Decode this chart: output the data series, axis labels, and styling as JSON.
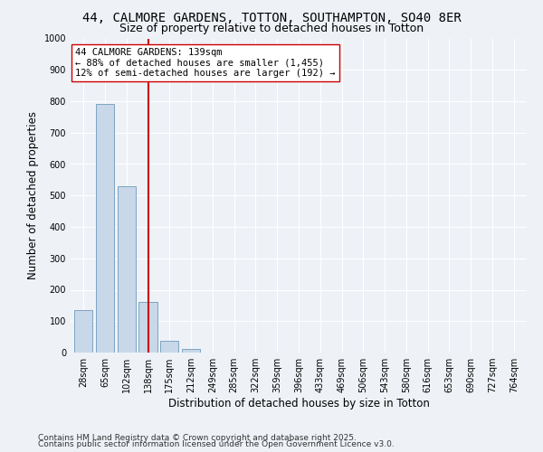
{
  "title_line1": "44, CALMORE GARDENS, TOTTON, SOUTHAMPTON, SO40 8ER",
  "title_line2": "Size of property relative to detached houses in Totton",
  "xlabel": "Distribution of detached houses by size in Totton",
  "ylabel": "Number of detached properties",
  "categories": [
    "28sqm",
    "65sqm",
    "102sqm",
    "138sqm",
    "175sqm",
    "212sqm",
    "249sqm",
    "285sqm",
    "322sqm",
    "359sqm",
    "396sqm",
    "433sqm",
    "469sqm",
    "506sqm",
    "543sqm",
    "580sqm",
    "616sqm",
    "653sqm",
    "690sqm",
    "727sqm",
    "764sqm"
  ],
  "values": [
    135,
    790,
    530,
    160,
    38,
    12,
    0,
    0,
    0,
    0,
    0,
    0,
    0,
    0,
    0,
    0,
    0,
    0,
    0,
    0,
    0
  ],
  "bar_color": "#c8d8e8",
  "bar_edge_color": "#5a8ab0",
  "vline_x_index": 3,
  "vline_color": "#cc0000",
  "annotation_line1": "44 CALMORE GARDENS: 139sqm",
  "annotation_line2": "← 88% of detached houses are smaller (1,455)",
  "annotation_line3": "12% of semi-detached houses are larger (192) →",
  "annotation_box_color": "#ffffff",
  "annotation_box_edge": "#cc0000",
  "ylim": [
    0,
    1000
  ],
  "yticks": [
    0,
    100,
    200,
    300,
    400,
    500,
    600,
    700,
    800,
    900,
    1000
  ],
  "background_color": "#eef2f7",
  "grid_color": "#ffffff",
  "footer_line1": "Contains HM Land Registry data © Crown copyright and database right 2025.",
  "footer_line2": "Contains public sector information licensed under the Open Government Licence v3.0.",
  "title_fontsize": 10,
  "subtitle_fontsize": 9,
  "axis_label_fontsize": 8.5,
  "tick_fontsize": 7,
  "annotation_fontsize": 7.5,
  "footer_fontsize": 6.5
}
